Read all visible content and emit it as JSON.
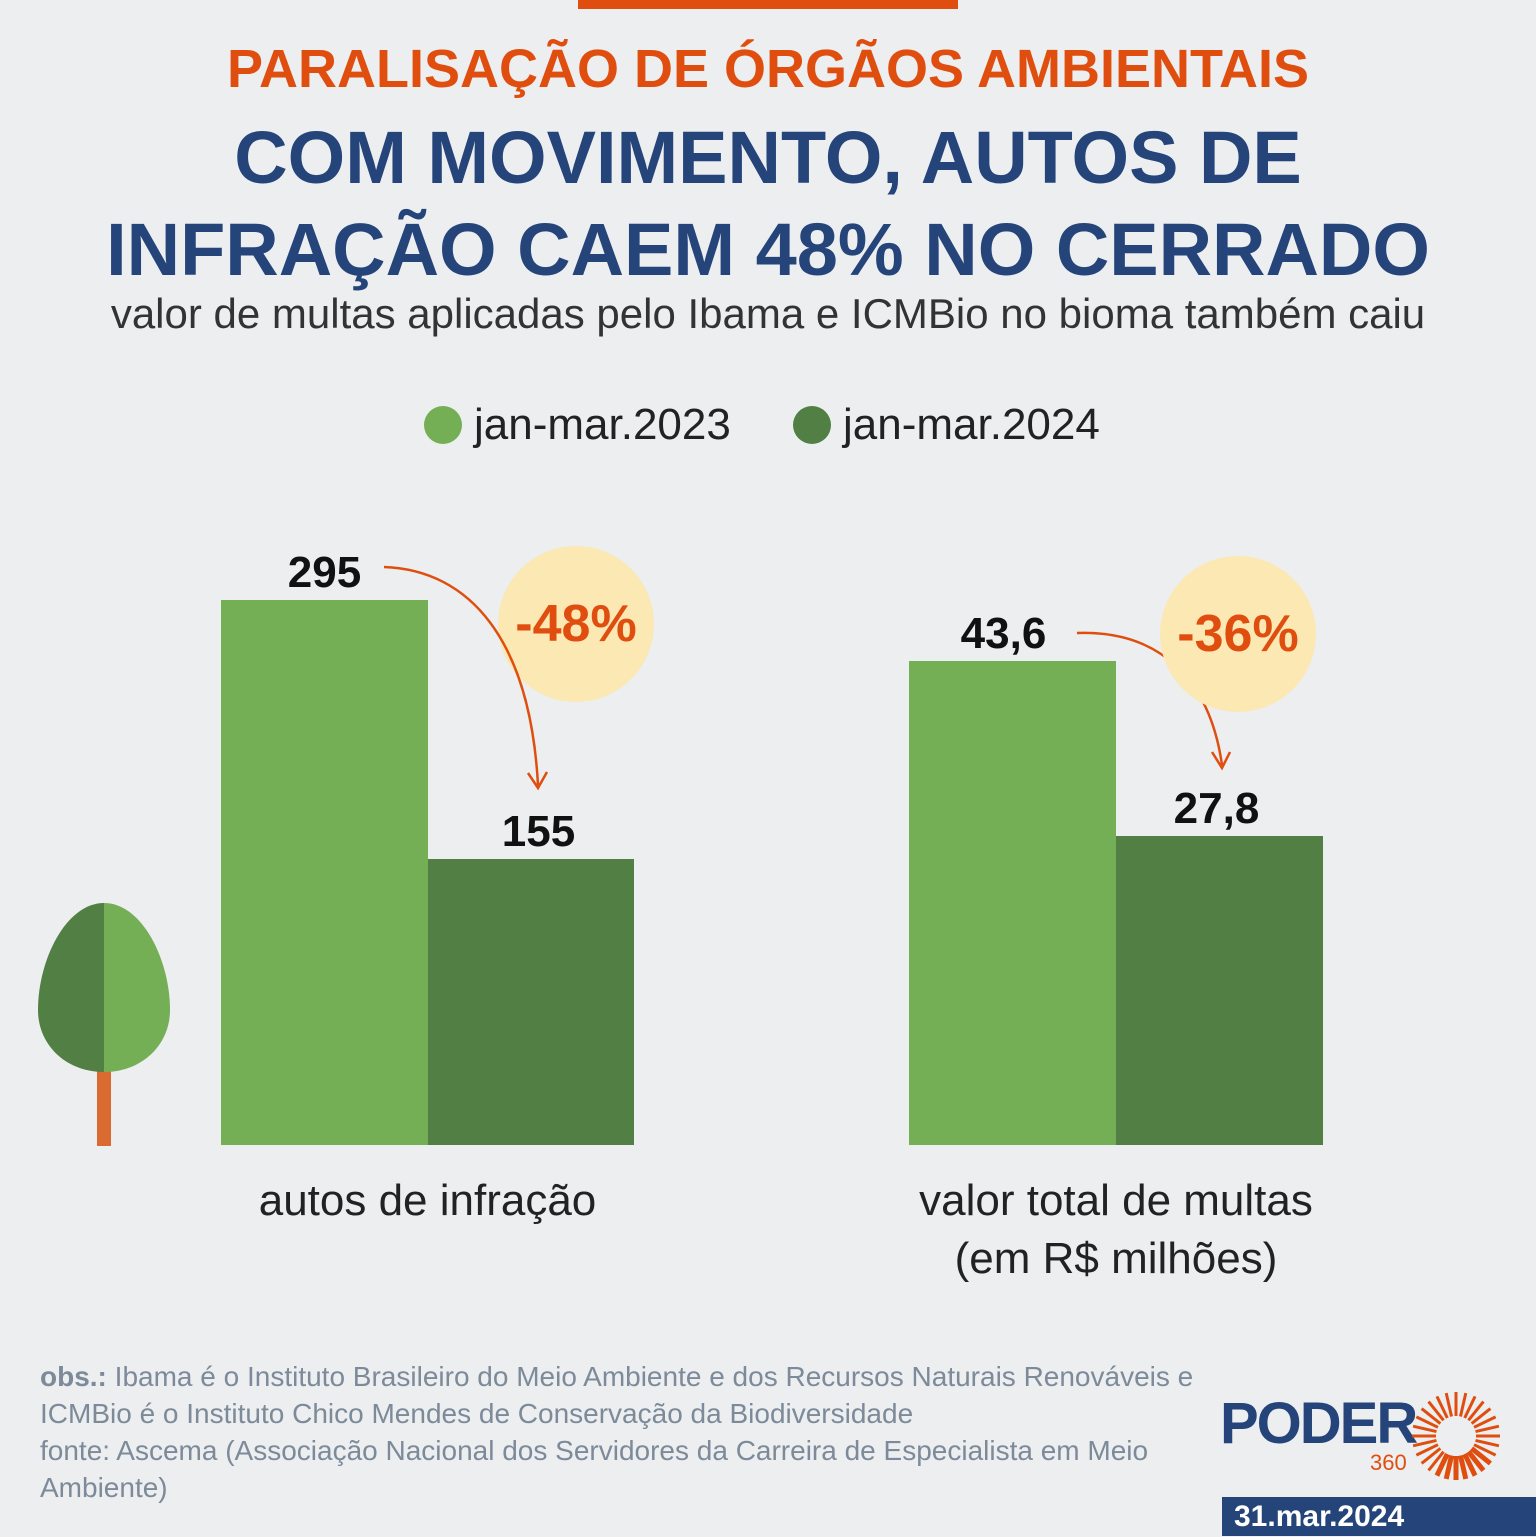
{
  "header": {
    "kicker": "PARALISAÇÃO DE ÓRGÃOS AMBIENTAIS",
    "title_line1": "COM MOVIMENTO, AUTOS DE",
    "title_line2": "INFRAÇÃO CAEM 48% NO CERRADO",
    "subtitle": "valor de multas aplicadas pelo Ibama e ICMBio no bioma também caiu"
  },
  "colors": {
    "accent": "#e04e0f",
    "navy": "#24447a",
    "series_2023": "#74ae55",
    "series_2024": "#517f44",
    "bubble": "#fbe8b3"
  },
  "chart_data": [
    {
      "type": "bar",
      "categories": [
        "autos de infração"
      ],
      "series": [
        {
          "name": "jan-mar.2023",
          "values": [
            295
          ]
        },
        {
          "name": "jan-mar.2024",
          "values": [
            155
          ]
        }
      ],
      "value_labels": [
        "295",
        "155"
      ],
      "annotation": "-48%",
      "xlabel": "autos de infração",
      "legend": "top"
    },
    {
      "type": "bar",
      "categories": [
        "valor total de multas (em R$ milhões)"
      ],
      "series": [
        {
          "name": "jan-mar.2023",
          "values": [
            43.6
          ]
        },
        {
          "name": "jan-mar.2024",
          "values": [
            27.8
          ]
        }
      ],
      "value_labels": [
        "43,6",
        "27,8"
      ],
      "annotation": "-36%",
      "xlabel_line1": "valor total de multas",
      "xlabel_line2": "(em R$ milhões)",
      "legend": "top"
    }
  ],
  "legend": [
    "jan-mar.2023",
    "jan-mar.2024"
  ],
  "footer": {
    "obs_label": "obs.:",
    "obs_text": " Ibama é o Instituto Brasileiro do Meio Ambiente e dos Recursos Naturais Renováveis e ICMBio é o Instituto Chico Mendes de Conservação da Biodiversidade",
    "source": "fonte: Ascema (Associação Nacional dos Servidores da Carreira de Especialista em Meio Ambiente)",
    "logo_text": "PODER",
    "logo_sub": "360",
    "date": "31.mar.2024"
  },
  "icons": [
    "tree-icon",
    "sun-burst-logo-icon"
  ]
}
